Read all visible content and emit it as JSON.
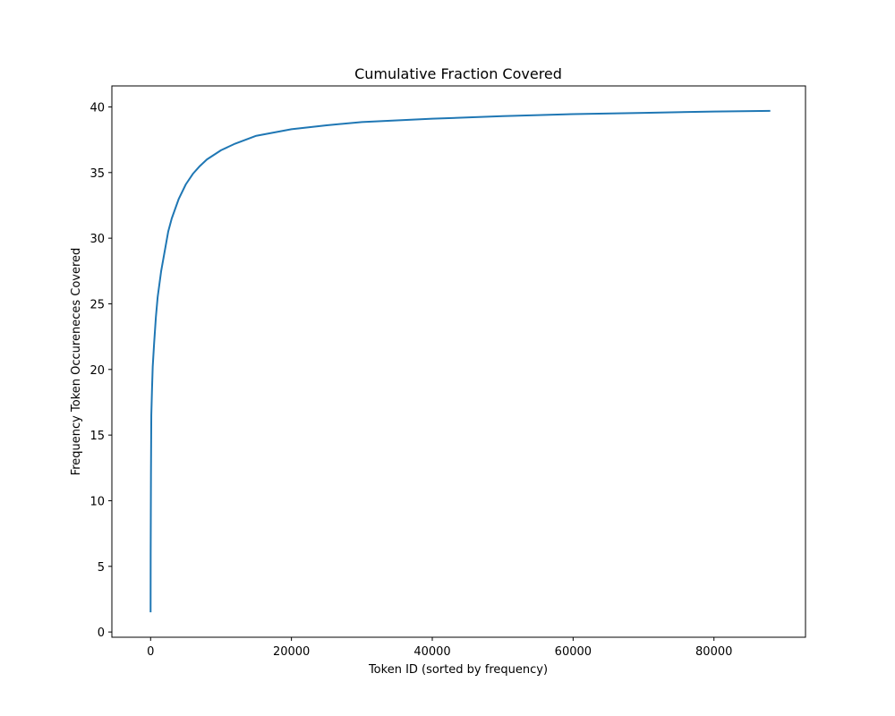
{
  "chart_data": {
    "type": "line",
    "title": "Cumulative Fraction Covered",
    "xlabel": "Token ID (sorted by frequency)",
    "ylabel": "Frequency Token Occureneces Covered",
    "xlim": [
      -5500,
      93000
    ],
    "ylim": [
      -0.4,
      41.6
    ],
    "xticks": [
      0,
      20000,
      40000,
      60000,
      80000
    ],
    "xtick_labels": [
      "0",
      "20000",
      "40000",
      "60000",
      "80000"
    ],
    "yticks": [
      0,
      5,
      10,
      15,
      20,
      25,
      30,
      35,
      40
    ],
    "ytick_labels": [
      "0",
      "5",
      "10",
      "15",
      "20",
      "25",
      "30",
      "35",
      "40"
    ],
    "grid": false,
    "series": [
      {
        "color": "#1f77b4",
        "x": [
          0,
          10,
          50,
          100,
          200,
          300,
          500,
          750,
          1000,
          1500,
          2000,
          2500,
          3000,
          4000,
          5000,
          6000,
          7000,
          8000,
          10000,
          12000,
          15000,
          20000,
          25000,
          30000,
          40000,
          50000,
          60000,
          70000,
          80000,
          88000
        ],
        "y": [
          1.5,
          6.0,
          12.0,
          16.5,
          18.5,
          20.2,
          22.0,
          24.0,
          25.5,
          27.5,
          29.0,
          30.5,
          31.5,
          33.0,
          34.1,
          34.9,
          35.5,
          36.0,
          36.7,
          37.2,
          37.8,
          38.3,
          38.6,
          38.85,
          39.1,
          39.3,
          39.45,
          39.55,
          39.65,
          39.7
        ]
      }
    ]
  }
}
